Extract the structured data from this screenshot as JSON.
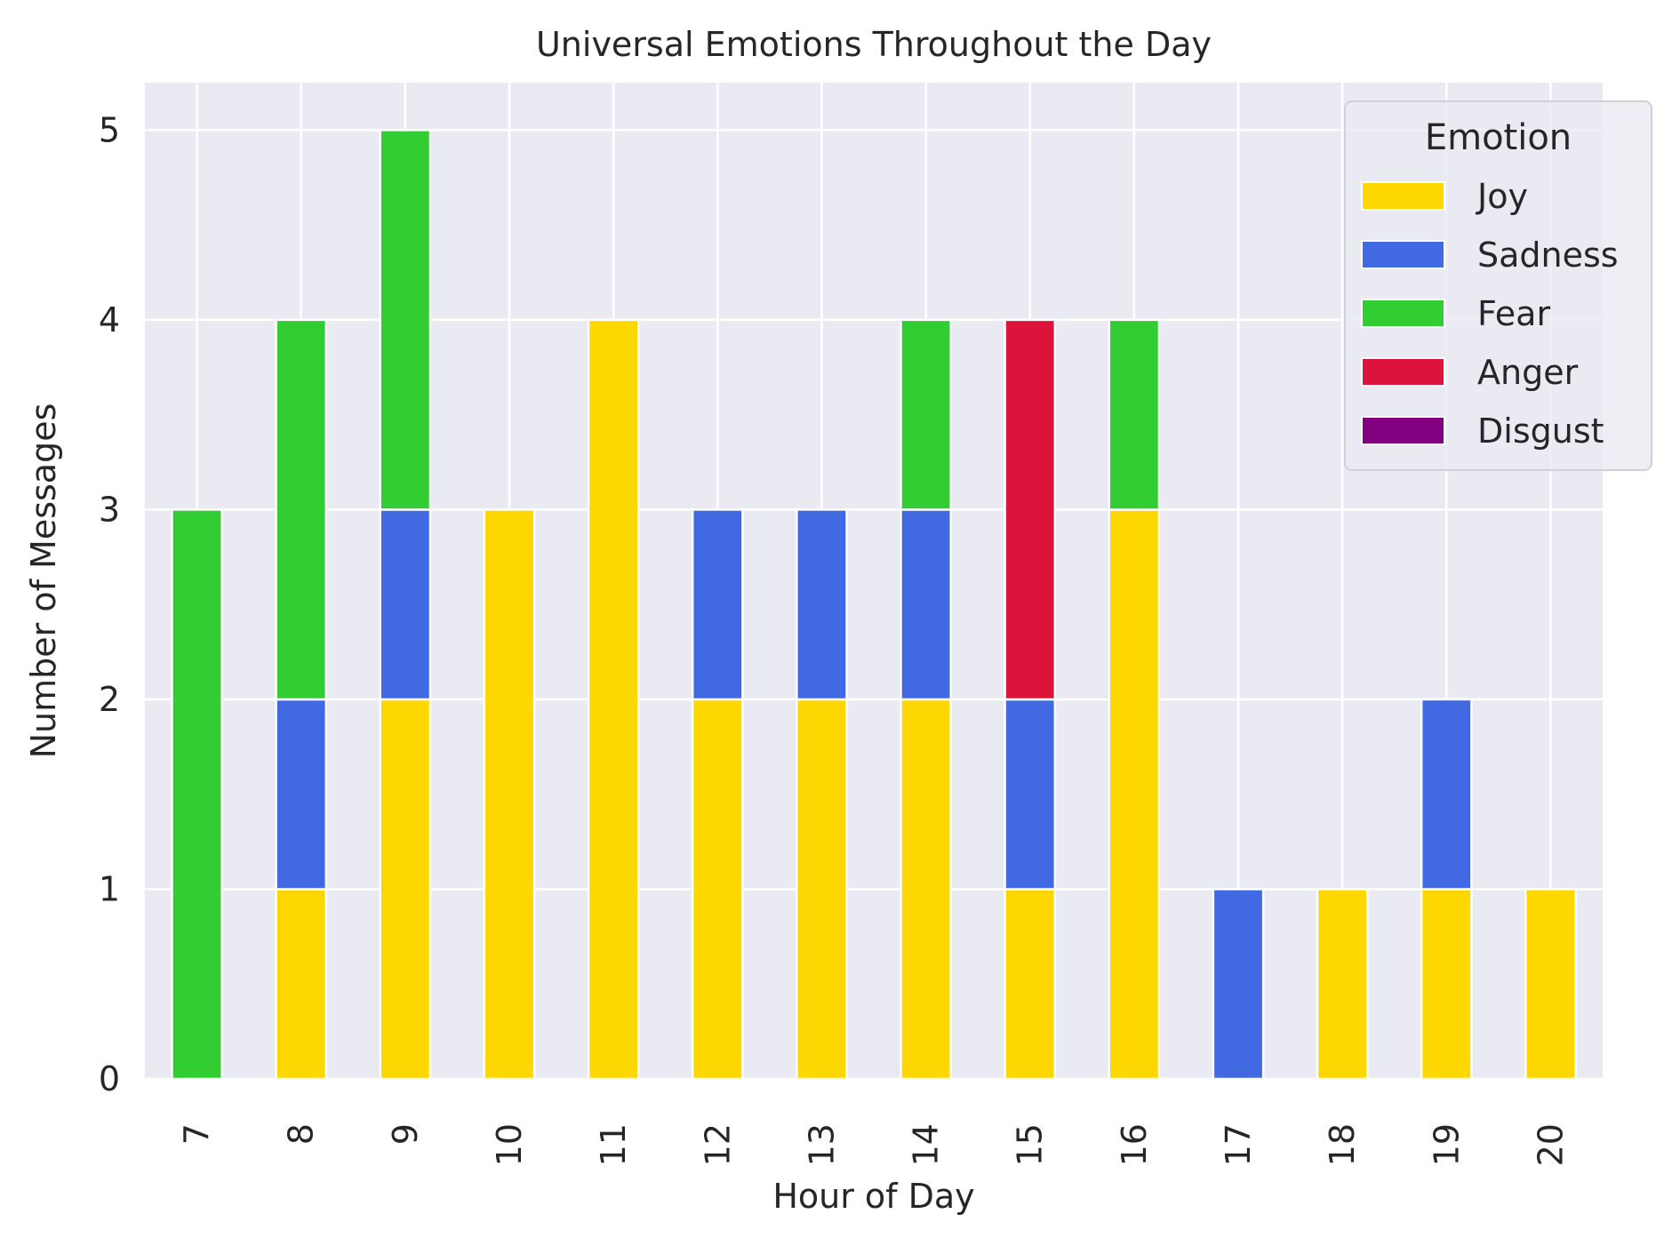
{
  "chart_data": {
    "type": "bar",
    "stacked": true,
    "title": "Universal Emotions Throughout the Day",
    "xlabel": "Hour of Day",
    "ylabel": "Number of Messages",
    "categories": [
      "7",
      "8",
      "9",
      "10",
      "11",
      "12",
      "13",
      "14",
      "15",
      "16",
      "17",
      "18",
      "19",
      "20"
    ],
    "yticks": [
      "0",
      "1",
      "2",
      "3",
      "4",
      "5"
    ],
    "ylim": [
      0,
      5.25
    ],
    "grid": true,
    "legend": {
      "title": "Emotion",
      "placement": "top-right"
    },
    "series": [
      {
        "name": "Joy",
        "color": "#FFD700",
        "values": [
          0,
          1,
          2,
          3,
          4,
          2,
          2,
          2,
          1,
          3,
          0,
          1,
          1,
          1
        ]
      },
      {
        "name": "Sadness",
        "color": "#4169E1",
        "values": [
          0,
          1,
          1,
          0,
          0,
          1,
          1,
          1,
          1,
          0,
          1,
          0,
          1,
          0
        ]
      },
      {
        "name": "Fear",
        "color": "#32CD32",
        "values": [
          3,
          2,
          2,
          0,
          0,
          0,
          0,
          1,
          0,
          1,
          0,
          0,
          0,
          0
        ]
      },
      {
        "name": "Anger",
        "color": "#DC143C",
        "values": [
          0,
          0,
          0,
          0,
          0,
          0,
          0,
          0,
          2,
          0,
          0,
          0,
          0,
          0
        ]
      },
      {
        "name": "Disgust",
        "color": "#800080",
        "values": [
          0,
          0,
          0,
          0,
          0,
          0,
          0,
          0,
          0,
          0,
          0,
          0,
          0,
          0
        ]
      }
    ],
    "colors": {
      "plot_background": "#EAEAF2",
      "grid": "#FFFFFF",
      "text": "#262626"
    }
  }
}
